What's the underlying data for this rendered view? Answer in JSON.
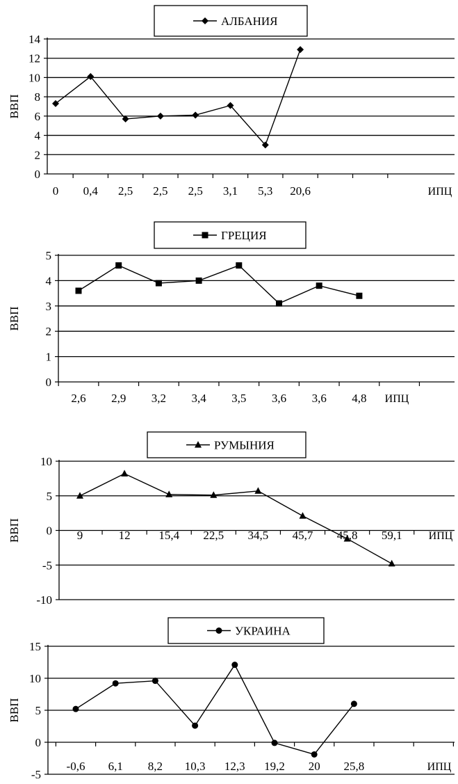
{
  "chart_data": [
    {
      "type": "line",
      "marker": "diamond",
      "legend": "АЛБАНИЯ",
      "ylabel": "ВВП",
      "xlabel": "ИПЦ",
      "ylim": [
        0,
        14
      ],
      "ystep": 2,
      "yticks": [
        "0",
        "2",
        "4",
        "6",
        "8",
        "10",
        "12",
        "14"
      ],
      "x": [
        "0",
        "0,4",
        "2,5",
        "2,5",
        "2,5",
        "3,1",
        "5,3",
        "20,6"
      ],
      "values": [
        7.3,
        10.1,
        5.7,
        6.0,
        6.1,
        7.1,
        3.0,
        12.9
      ],
      "grid": true
    },
    {
      "type": "line",
      "marker": "square",
      "legend": "ГРЕЦИЯ",
      "ylabel": "ВВП",
      "xlabel": "ИПЦ",
      "ylim": [
        0,
        5
      ],
      "ystep": 1,
      "yticks": [
        "0",
        "1",
        "2",
        "3",
        "4",
        "5"
      ],
      "x": [
        "2,6",
        "2,9",
        "3,2",
        "3,4",
        "3,5",
        "3,6",
        "3,6",
        "4,8"
      ],
      "values": [
        3.6,
        4.6,
        3.9,
        4.0,
        4.6,
        3.1,
        3.8,
        3.4
      ],
      "grid": true
    },
    {
      "type": "line",
      "marker": "triangle",
      "legend": "РУМЫНИЯ",
      "ylabel": "ВВП",
      "xlabel": "ИПЦ",
      "ylim": [
        -10,
        10
      ],
      "ystep": 5,
      "yticks": [
        "-10",
        "-5",
        "0",
        "5",
        "10"
      ],
      "x": [
        "9",
        "12",
        "15,4",
        "22,5",
        "34,5",
        "45,7",
        "45,8",
        "59,1"
      ],
      "values": [
        5.0,
        8.2,
        5.2,
        5.1,
        5.7,
        2.1,
        -1.2,
        -4.8
      ],
      "grid": true
    },
    {
      "type": "line",
      "marker": "circle",
      "legend": "УКРАИНА",
      "ylabel": "ВВП",
      "xlabel": "ИПЦ",
      "ylim": [
        -5,
        15
      ],
      "ystep": 5,
      "yticks": [
        "-5",
        "0",
        "5",
        "10",
        "15"
      ],
      "x": [
        "-0,6",
        "6,1",
        "8,2",
        "10,3",
        "12,3",
        "19,2",
        "20",
        "25,8"
      ],
      "values": [
        5.2,
        9.2,
        9.6,
        2.6,
        12.1,
        -0.1,
        -1.9,
        6.0
      ],
      "grid": true
    }
  ]
}
